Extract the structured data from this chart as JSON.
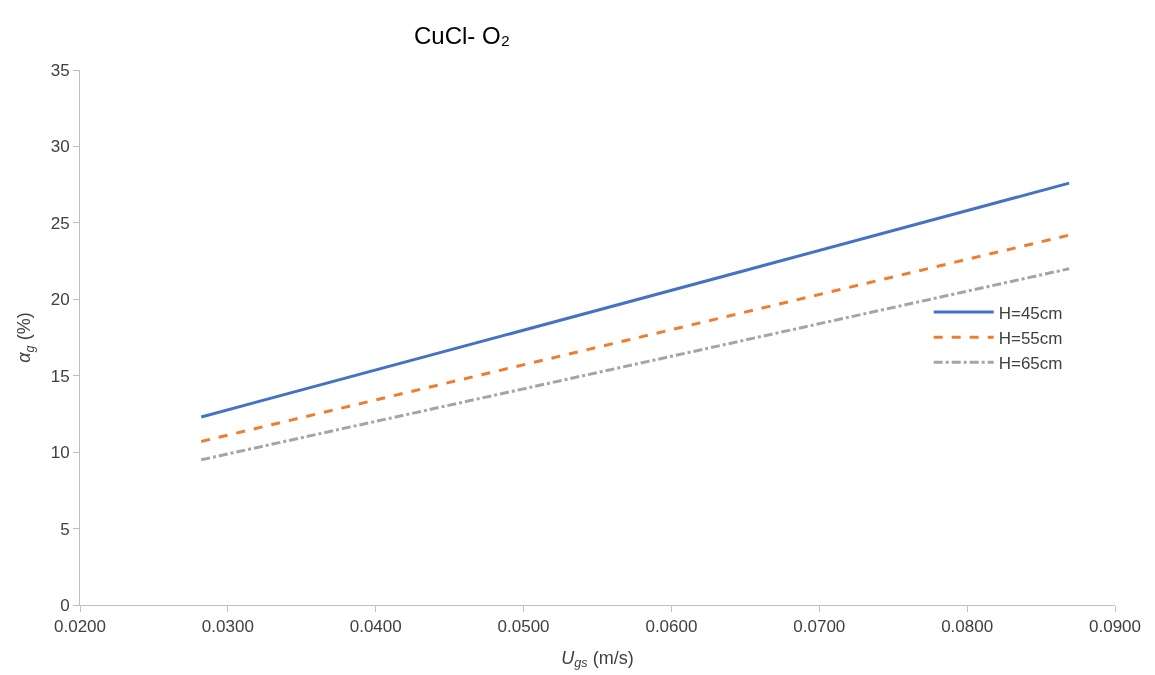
{
  "chart_data": {
    "type": "line",
    "title": "CuCl- O₂",
    "xlabel": "U$_{gs}$ (m/s)",
    "ylabel": "α$_{g}$ (%)",
    "xlim": [
      0.02,
      0.09
    ],
    "xticks": [
      {
        "value": 0.02,
        "label": "0.0200"
      },
      {
        "value": 0.03,
        "label": "0.0300"
      },
      {
        "value": 0.04,
        "label": "0.0400"
      },
      {
        "value": 0.05,
        "label": "0.0500"
      },
      {
        "value": 0.06,
        "label": "0.0600"
      },
      {
        "value": 0.07,
        "label": "0.0700"
      },
      {
        "value": 0.08,
        "label": "0.0800"
      },
      {
        "value": 0.09,
        "label": "0.0900"
      }
    ],
    "ylim": [
      0,
      35
    ],
    "yticks": [
      0,
      5,
      10,
      15,
      20,
      25,
      30,
      35
    ],
    "legend": "right",
    "marker": "none",
    "x": [
      0.0282,
      0.0869
    ],
    "series": [
      {
        "name": "H=45cm",
        "color": "#4472c4",
        "values": [
          12.3,
          27.6
        ],
        "line_style": "solid"
      },
      {
        "name": "H=55cm",
        "color": "#ed7d31",
        "values": [
          10.7,
          24.2
        ],
        "line_style": "dashed"
      },
      {
        "name": "H=65cm",
        "color": "#a5a5a5",
        "values": [
          9.5,
          22.0
        ],
        "line_style": "dashdot"
      }
    ]
  }
}
